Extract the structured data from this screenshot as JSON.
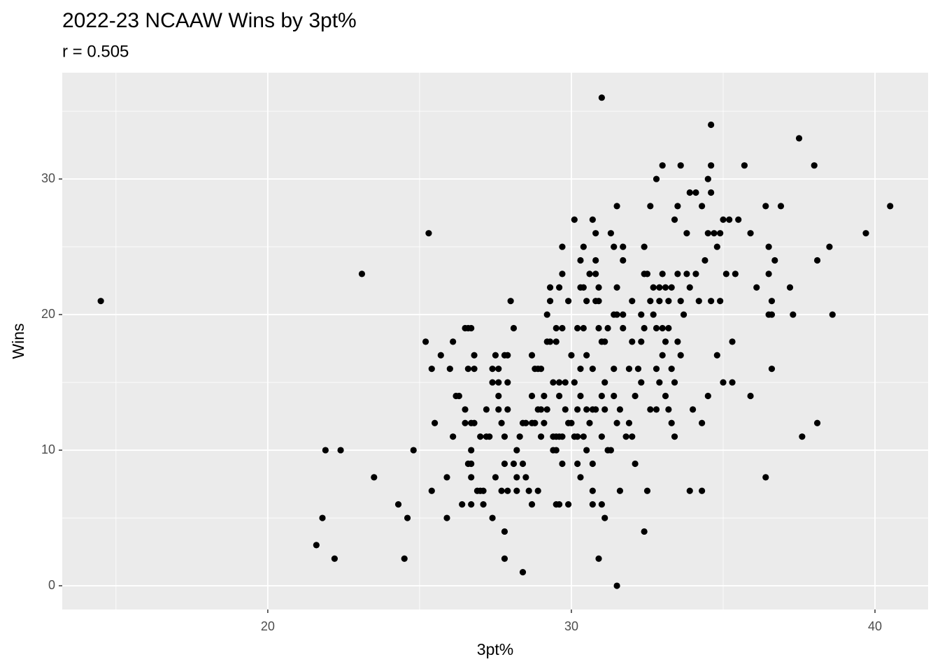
{
  "chart_data": {
    "type": "scatter",
    "title": "2022-23 NCAAW Wins by 3pt%",
    "subtitle": "r = 0.505",
    "x_label": "3pt%",
    "y_label": "Wins",
    "color": "#000000",
    "grid": true,
    "xlim": [
      13.23,
      41.75
    ],
    "ylim": [
      -1.75,
      37.84
    ],
    "xticks": [
      20,
      30,
      40
    ],
    "yticks": [
      0,
      10,
      20,
      30
    ],
    "xminor": [
      15,
      25,
      35
    ],
    "yminor": [
      5,
      15,
      25,
      35
    ],
    "x": [
      14.5,
      21.6,
      21.8,
      21.9,
      22.2,
      22.4,
      23.1,
      23.5,
      24.3,
      24.5,
      24.6,
      24.8,
      25.2,
      25.3,
      25.4,
      25.4,
      25.5,
      25.7,
      25.9,
      25.9,
      26.0,
      26.1,
      26.1,
      26.2,
      26.3,
      26.4,
      26.5,
      26.5,
      26.5,
      26.6,
      26.6,
      26.6,
      26.7,
      26.7,
      26.7,
      26.7,
      26.7,
      26.7,
      26.8,
      26.8,
      26.8,
      26.9,
      27.0,
      27.0,
      27.1,
      27.1,
      27.2,
      27.2,
      27.3,
      27.4,
      27.4,
      27.4,
      27.5,
      27.5,
      27.6,
      27.6,
      27.6,
      27.6,
      27.7,
      27.7,
      27.8,
      27.8,
      27.8,
      27.8,
      27.8,
      27.9,
      27.9,
      27.9,
      27.9,
      28.0,
      28.1,
      28.1,
      28.2,
      28.2,
      28.2,
      28.3,
      28.4,
      28.4,
      28.4,
      28.5,
      28.5,
      28.6,
      28.7,
      28.7,
      28.7,
      28.7,
      28.8,
      28.8,
      28.9,
      28.9,
      28.9,
      29.0,
      29.0,
      29.0,
      29.1,
      29.1,
      29.2,
      29.2,
      29.2,
      29.3,
      29.3,
      29.3,
      29.4,
      29.4,
      29.4,
      29.5,
      29.5,
      29.5,
      29.5,
      29.5,
      29.6,
      29.6,
      29.6,
      29.6,
      29.6,
      29.7,
      29.7,
      29.7,
      29.7,
      29.7,
      29.8,
      29.8,
      29.9,
      29.9,
      29.9,
      30.0,
      30.0,
      30.1,
      30.1,
      30.1,
      30.2,
      30.2,
      30.2,
      30.2,
      30.3,
      30.3,
      30.3,
      30.3,
      30.3,
      30.4,
      30.4,
      30.4,
      30.4,
      30.5,
      30.5,
      30.5,
      30.5,
      30.6,
      30.6,
      30.7,
      30.7,
      30.7,
      30.7,
      30.7,
      30.7,
      30.8,
      30.8,
      30.8,
      30.8,
      30.8,
      30.9,
      30.9,
      30.9,
      30.9,
      31.0,
      31.0,
      31.0,
      31.0,
      31.0,
      31.1,
      31.1,
      31.1,
      31.1,
      31.2,
      31.2,
      31.3,
      31.3,
      31.4,
      31.4,
      31.4,
      31.4,
      31.5,
      31.5,
      31.5,
      31.5,
      31.5,
      31.6,
      31.6,
      31.7,
      31.7,
      31.7,
      31.7,
      31.8,
      31.9,
      31.9,
      32.0,
      32.0,
      32.0,
      32.1,
      32.1,
      32.2,
      32.3,
      32.3,
      32.3,
      32.4,
      32.4,
      32.4,
      32.4,
      32.5,
      32.5,
      32.6,
      32.6,
      32.6,
      32.7,
      32.7,
      32.8,
      32.8,
      32.8,
      32.8,
      32.9,
      32.9,
      32.9,
      33.0,
      33.0,
      33.0,
      33.0,
      33.1,
      33.1,
      33.1,
      33.2,
      33.2,
      33.2,
      33.3,
      33.3,
      33.3,
      33.4,
      33.4,
      33.4,
      33.5,
      33.5,
      33.5,
      33.6,
      33.6,
      33.6,
      33.7,
      33.8,
      33.8,
      33.9,
      33.9,
      33.9,
      34.0,
      34.1,
      34.1,
      34.2,
      34.3,
      34.3,
      34.3,
      34.4,
      34.5,
      34.5,
      34.5,
      34.6,
      34.6,
      34.6,
      34.6,
      34.7,
      34.8,
      34.8,
      34.9,
      34.9,
      35.0,
      35.0,
      35.1,
      35.2,
      35.3,
      35.3,
      35.4,
      35.5,
      35.7,
      35.9,
      35.9,
      36.1,
      36.4,
      36.4,
      36.5,
      36.5,
      36.5,
      36.6,
      36.6,
      36.6,
      36.7,
      36.9,
      37.2,
      37.3,
      37.5,
      37.6,
      38.0,
      38.1,
      38.1,
      38.5,
      38.6,
      39.7,
      40.5
    ],
    "y": [
      21,
      3,
      5,
      10,
      2,
      10,
      23,
      8,
      6,
      2,
      5,
      10,
      18,
      26,
      16,
      7,
      12,
      17,
      5,
      8,
      16,
      18,
      11,
      14,
      14,
      6,
      19,
      13,
      12,
      19,
      16,
      9,
      19,
      12,
      10,
      9,
      8,
      6,
      17,
      16,
      12,
      7,
      11,
      7,
      6,
      7,
      13,
      11,
      11,
      5,
      16,
      15,
      17,
      8,
      14,
      16,
      15,
      13,
      12,
      7,
      11,
      9,
      4,
      2,
      17,
      17,
      15,
      13,
      7,
      21,
      19,
      9,
      8,
      10,
      7,
      11,
      12,
      1,
      9,
      12,
      8,
      7,
      17,
      14,
      12,
      6,
      16,
      12,
      13,
      16,
      7,
      16,
      13,
      11,
      14,
      12,
      20,
      13,
      18,
      22,
      21,
      18,
      15,
      11,
      10,
      19,
      18,
      11,
      10,
      6,
      22,
      15,
      14,
      11,
      6,
      23,
      25,
      19,
      11,
      9,
      13,
      15,
      21,
      12,
      6,
      12,
      17,
      27,
      15,
      11,
      19,
      13,
      9,
      11,
      24,
      22,
      16,
      14,
      8,
      25,
      22,
      19,
      11,
      21,
      17,
      13,
      10,
      23,
      12,
      27,
      13,
      16,
      9,
      7,
      6,
      26,
      24,
      23,
      21,
      13,
      22,
      19,
      2,
      21,
      36,
      18,
      14,
      11,
      6,
      18,
      15,
      5,
      13,
      19,
      10,
      26,
      10,
      25,
      20,
      16,
      14,
      28,
      20,
      22,
      0,
      12,
      13,
      7,
      25,
      24,
      20,
      19,
      11,
      16,
      12,
      21,
      18,
      11,
      9,
      14,
      16,
      15,
      20,
      18,
      25,
      23,
      19,
      4,
      23,
      7,
      28,
      21,
      13,
      22,
      20,
      30,
      19,
      16,
      13,
      22,
      21,
      15,
      31,
      23,
      19,
      17,
      22,
      18,
      14,
      21,
      19,
      13,
      22,
      16,
      12,
      27,
      15,
      11,
      28,
      23,
      18,
      31,
      21,
      17,
      20,
      23,
      26,
      29,
      22,
      7,
      13,
      29,
      23,
      21,
      28,
      12,
      7,
      24,
      30,
      26,
      14,
      34,
      31,
      29,
      21,
      26,
      25,
      17,
      26,
      21,
      27,
      15,
      23,
      27,
      18,
      15,
      23,
      27,
      31,
      26,
      14,
      22,
      28,
      8,
      25,
      23,
      20,
      21,
      16,
      20,
      24,
      28,
      22,
      20,
      33,
      11,
      31,
      24,
      12,
      25,
      20,
      26,
      28
    ]
  }
}
